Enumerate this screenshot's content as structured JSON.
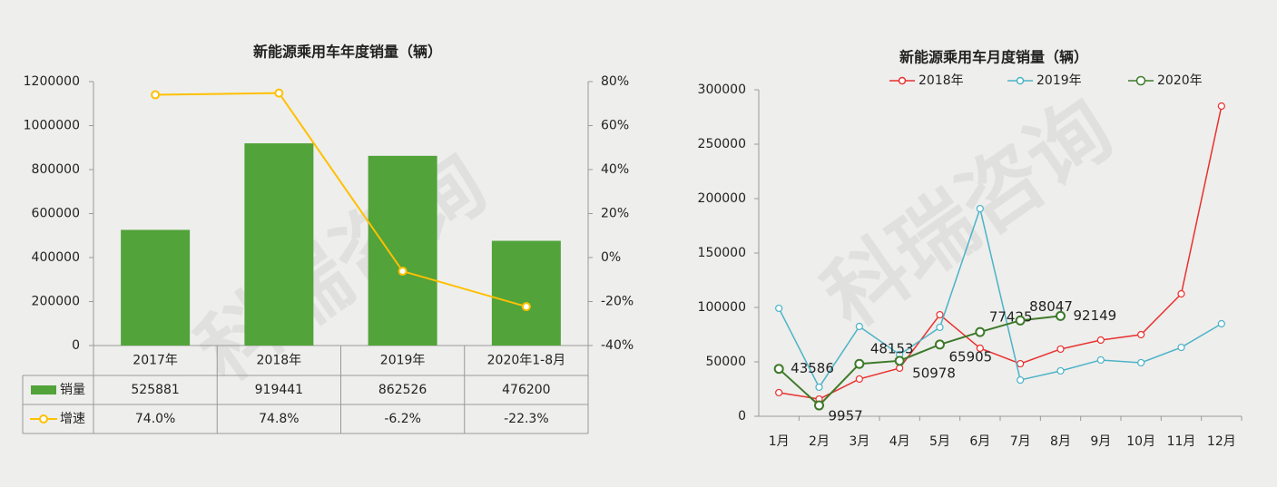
{
  "watermark": "科瑞咨询",
  "chart_data": [
    {
      "type": "bar-line-table",
      "title": "新能源乘用车年度销量（辆）",
      "categories": [
        "2017年",
        "2018年",
        "2019年",
        "2020年1-8月"
      ],
      "series": [
        {
          "name": "销量",
          "color": "#52a33a",
          "values": [
            525881,
            919441,
            862526,
            476200
          ]
        },
        {
          "name": "增速",
          "color": "#ffc000",
          "axis": "y2",
          "values": [
            74.0,
            74.8,
            -6.2,
            -22.3
          ],
          "value_labels": [
            "74.0%",
            "74.8%",
            "-6.2%",
            "-22.3%"
          ]
        }
      ],
      "ylim": [
        0,
        1200000
      ],
      "yticks": [
        0,
        200000,
        400000,
        600000,
        800000,
        1000000,
        1200000
      ],
      "y2lim": [
        -40,
        80
      ],
      "y2ticks": [
        {
          "value": -40,
          "label": "-40%"
        },
        {
          "value": -20,
          "label": "-20%"
        },
        {
          "value": 0,
          "label": "0%"
        },
        {
          "value": 20,
          "label": "20%"
        },
        {
          "value": 40,
          "label": "40%"
        },
        {
          "value": 60,
          "label": "60%"
        },
        {
          "value": 80,
          "label": "80%"
        }
      ],
      "grid": false
    },
    {
      "type": "line",
      "title": "新能源乘用车月度销量（辆）",
      "categories": [
        "1月",
        "2月",
        "3月",
        "4月",
        "5月",
        "6月",
        "7月",
        "8月",
        "9月",
        "10月",
        "11月",
        "12月"
      ],
      "series": [
        {
          "name": "2018年",
          "color": "#e8312f",
          "values": [
            21700,
            15800,
            34200,
            44200,
            93300,
            62500,
            48300,
            61700,
            70000,
            75000,
            112500,
            285000
          ]
        },
        {
          "name": "2019年",
          "color": "#4bb3c8",
          "values": [
            99200,
            26700,
            82500,
            56700,
            81700,
            190800,
            33300,
            41700,
            51700,
            49200,
            63300,
            85000
          ]
        },
        {
          "name": "2020年",
          "color": "#3d7a2a",
          "values": [
            43586,
            9957,
            48153,
            50978,
            65905,
            77425,
            88047,
            92149,
            null,
            null,
            null,
            null
          ],
          "data_labels": true
        }
      ],
      "ylim": [
        0,
        300000
      ],
      "yticks": [
        0,
        50000,
        100000,
        150000,
        200000,
        250000,
        300000
      ],
      "grid": false,
      "legend": "top"
    }
  ]
}
